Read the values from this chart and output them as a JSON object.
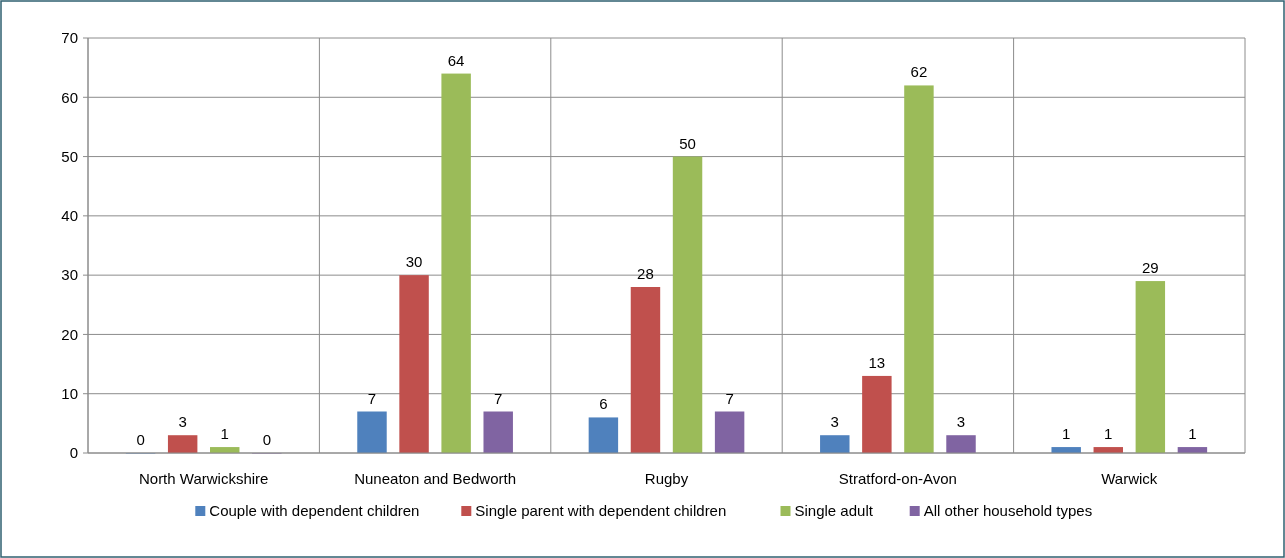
{
  "chart_data": {
    "type": "bar",
    "categories": [
      "North Warwickshire",
      "Nuneaton and Bedworth",
      "Rugby",
      "Stratford-on-Avon",
      "Warwick"
    ],
    "series": [
      {
        "name": "Couple with dependent children",
        "color": "#4f81bd",
        "values": [
          0,
          7,
          6,
          3,
          1
        ]
      },
      {
        "name": "Single parent with dependent children",
        "color": "#c0504d",
        "values": [
          3,
          30,
          28,
          13,
          1
        ]
      },
      {
        "name": "Single adult",
        "color": "#9bbb59",
        "values": [
          1,
          64,
          50,
          62,
          29
        ]
      },
      {
        "name": "All other household types",
        "color": "#8064a2",
        "values": [
          0,
          7,
          7,
          3,
          1
        ]
      }
    ],
    "ylim": [
      0,
      70
    ],
    "yticks": [
      0,
      10,
      20,
      30,
      40,
      50,
      60,
      70
    ],
    "grid": true,
    "legend": "bottom",
    "data_labels": true
  }
}
